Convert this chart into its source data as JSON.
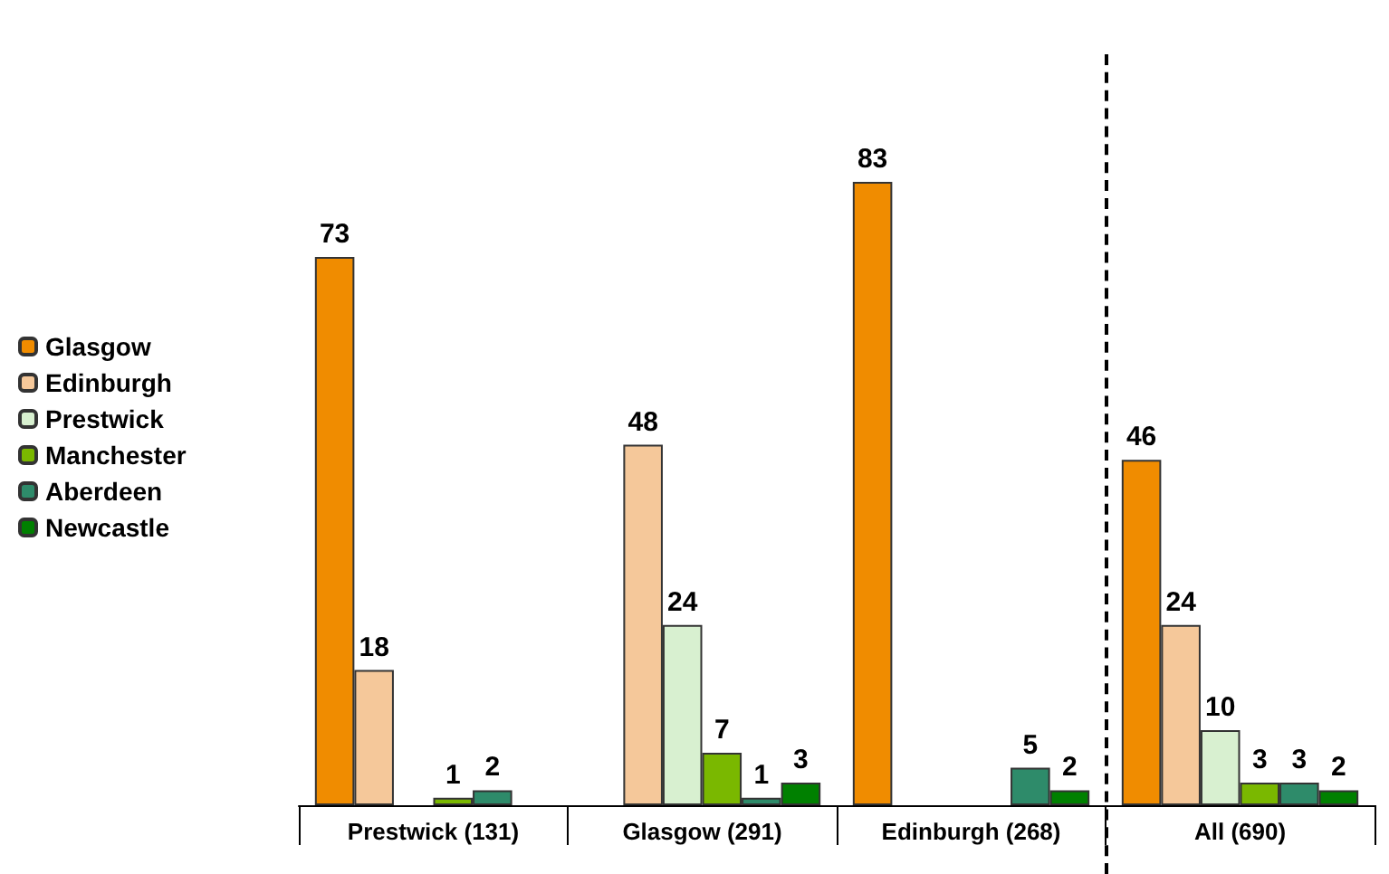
{
  "chart_data": {
    "type": "bar",
    "categories": [
      "Prestwick (131)",
      "Glasgow (291)",
      "Edinburgh (268)",
      "All (690)"
    ],
    "series": [
      {
        "name": "Glasgow",
        "color": "#f08c00",
        "values": [
          73,
          null,
          83,
          46
        ]
      },
      {
        "name": "Edinburgh",
        "color": "#f5c89a",
        "values": [
          18,
          48,
          null,
          24
        ]
      },
      {
        "name": "Prestwick",
        "color": "#d8f0d0",
        "values": [
          null,
          24,
          null,
          10
        ]
      },
      {
        "name": "Manchester",
        "color": "#7ab800",
        "values": [
          1,
          7,
          null,
          3
        ]
      },
      {
        "name": "Aberdeen",
        "color": "#2e8b6a",
        "values": [
          2,
          1,
          5,
          3
        ]
      },
      {
        "name": "Newcastle",
        "color": "#008000",
        "values": [
          null,
          3,
          2,
          2
        ]
      }
    ],
    "data_labels": true,
    "legend": "left",
    "tick_labels": "x"
  }
}
